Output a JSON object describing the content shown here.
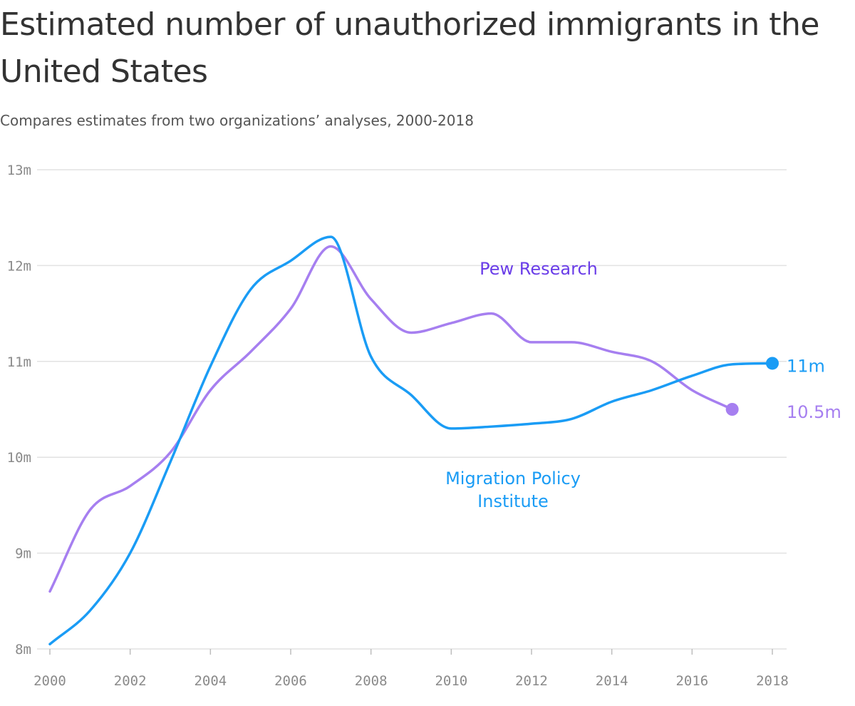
{
  "title": "Estimated number of unauthorized immigrants in the United States",
  "subtitle": "Compares estimates from two organizations’ analyses, 2000-2018",
  "chart_data": {
    "type": "line",
    "title": "Estimated number of unauthorized immigrants in the United States",
    "subtitle": "Compares estimates from two organizations’ analyses, 2000-2018",
    "xlabel": "",
    "ylabel": "",
    "xlim": [
      2000,
      2018
    ],
    "ylim": [
      8,
      13
    ],
    "x_ticks": [
      2000,
      2002,
      2004,
      2006,
      2008,
      2010,
      2012,
      2014,
      2016,
      2018
    ],
    "x_tick_labels": [
      "2000",
      "2002",
      "2004",
      "2006",
      "2008",
      "2010",
      "2012",
      "2014",
      "2016",
      "2018"
    ],
    "y_ticks": [
      8,
      9,
      10,
      11,
      12,
      13
    ],
    "y_tick_labels": [
      "8m",
      "9m",
      "10m",
      "11m",
      "12m",
      "13m"
    ],
    "grid": "horizontal",
    "series": [
      {
        "name": "Pew Research",
        "color": "#a67ff0",
        "label_color": "#6a3de8",
        "end_label": "10.5m",
        "x": [
          2000,
          2001,
          2002,
          2003,
          2004,
          2005,
          2006,
          2007,
          2008,
          2009,
          2010,
          2011,
          2012,
          2013,
          2014,
          2015,
          2016,
          2017
        ],
        "values": [
          8.6,
          9.45,
          9.7,
          10.05,
          10.7,
          11.1,
          11.55,
          12.2,
          11.65,
          11.3,
          11.4,
          11.5,
          11.2,
          11.2,
          11.1,
          11.0,
          10.7,
          10.5
        ]
      },
      {
        "name": "Migration Policy Institute",
        "name_lines": [
          "Migration Policy",
          "Institute"
        ],
        "color": "#1a9cf5",
        "label_color": "#1a9cf5",
        "end_label": "11m",
        "x": [
          2000,
          2001,
          2002,
          2003,
          2004,
          2005,
          2006,
          2007,
          2008,
          2009,
          2010,
          2011,
          2012,
          2013,
          2014,
          2015,
          2016,
          2017,
          2018
        ],
        "values": [
          8.05,
          8.4,
          9.0,
          9.95,
          10.95,
          11.75,
          12.05,
          12.3,
          11.05,
          10.65,
          10.3,
          10.32,
          10.35,
          10.4,
          10.58,
          10.7,
          10.85,
          10.97,
          10.98
        ]
      }
    ]
  }
}
